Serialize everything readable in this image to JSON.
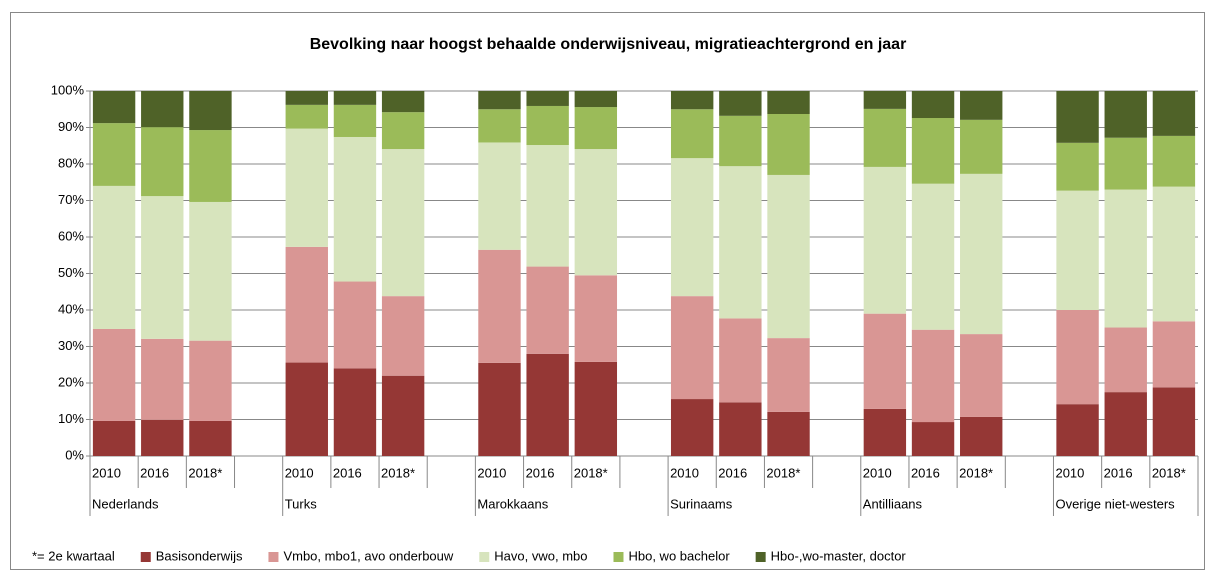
{
  "chart_data": {
    "type": "stacked_bar",
    "title": "Bevolking naar hoogst behaalde onderwijsniveau, migratieachtergrond en jaar",
    "note": "*= 2e kwartaal",
    "groups": [
      "Nederlands",
      "Turks",
      "Marokkaans",
      "Surinaams",
      "Antilliaans",
      "Overige niet-westers"
    ],
    "categories": [
      "2010",
      "2016",
      "2018*",
      null,
      "2010",
      "2016",
      "2018*",
      null,
      "2010",
      "2016",
      "2018*",
      null,
      "2010",
      "2016",
      "2018*",
      null,
      "2010",
      "2016",
      "2018*",
      null,
      "2010",
      "2016",
      "2018*"
    ],
    "series": [
      {
        "name": "Basisonderwijs",
        "color": "#953735",
        "values": [
          9.6,
          9.9,
          9.6,
          null,
          25.6,
          24,
          22,
          null,
          25.5,
          28,
          25.8,
          null,
          15.6,
          14.7,
          12.1,
          null,
          12.9,
          9.3,
          10.7,
          null,
          14.2,
          17.5,
          18.8
        ]
      },
      {
        "name": "Vmbo, mbo1, avo onderbouw",
        "color": "#d99694",
        "values": [
          25.2,
          22.2,
          22,
          null,
          31.7,
          23.8,
          21.8,
          null,
          31,
          23.9,
          23.7,
          null,
          28.2,
          23,
          20.2,
          null,
          26.1,
          25.3,
          22.7,
          null,
          25.8,
          17.7,
          18.1
        ]
      },
      {
        "name": "Havo, vwo, mbo",
        "color": "#d7e4bd",
        "values": [
          39.2,
          39.1,
          38,
          null,
          32.4,
          39.6,
          40.3,
          null,
          29.4,
          33.3,
          34.6,
          null,
          37.8,
          41.7,
          44.7,
          null,
          40.2,
          40,
          43.9,
          null,
          32.7,
          37.8,
          36.9
        ]
      },
      {
        "name": "Hbo, wo bachelor",
        "color": "#9bbb59",
        "values": [
          17.2,
          18.9,
          19.7,
          null,
          6.5,
          8.8,
          10.1,
          null,
          9.1,
          10.7,
          11.5,
          null,
          13.4,
          13.8,
          16.7,
          null,
          15.9,
          18,
          14.8,
          null,
          13.1,
          14.2,
          13.9
        ]
      },
      {
        "name": "Hbo-,wo-master, doctor",
        "color": "#4f6228",
        "values": [
          8.8,
          9.9,
          10.7,
          null,
          3.8,
          3.8,
          5.8,
          null,
          5,
          4.1,
          4.4,
          null,
          5,
          6.8,
          6.3,
          null,
          4.9,
          7.4,
          7.9,
          null,
          14.2,
          12.8,
          12.3
        ]
      }
    ],
    "ylim": [
      0,
      100
    ],
    "yticks": [
      {
        "value": 0,
        "label": "0%"
      },
      {
        "value": 10,
        "label": "10%"
      },
      {
        "value": 20,
        "label": "20%"
      },
      {
        "value": 30,
        "label": "30%"
      },
      {
        "value": 40,
        "label": "40%"
      },
      {
        "value": 50,
        "label": "50%"
      },
      {
        "value": 60,
        "label": "60%"
      },
      {
        "value": 70,
        "label": "70%"
      },
      {
        "value": 80,
        "label": "80%"
      },
      {
        "value": 90,
        "label": "90%"
      },
      {
        "value": 100,
        "label": "100%"
      }
    ],
    "grid": true,
    "legend": "bottom"
  }
}
